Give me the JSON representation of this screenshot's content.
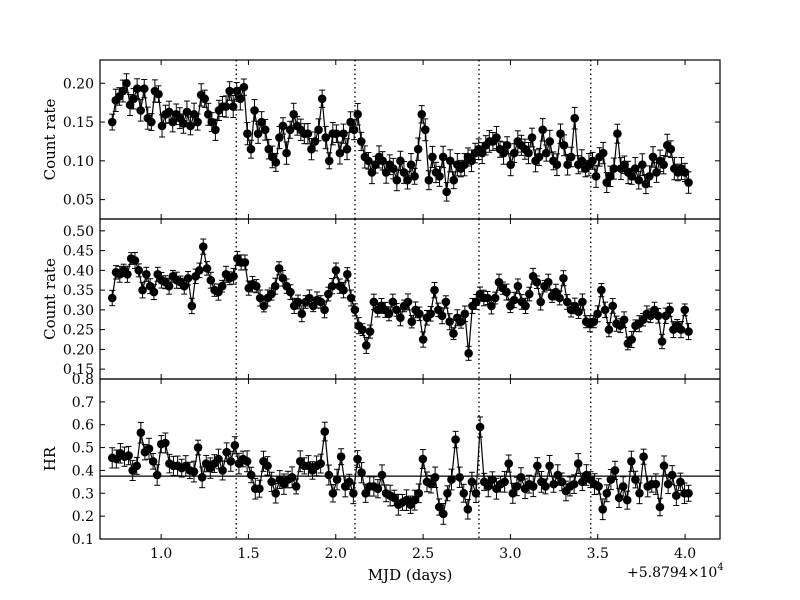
{
  "chart_data": [
    {
      "type": "scatter",
      "ylabel": "Count rate",
      "ylim": [
        0.025,
        0.23
      ],
      "yticks": [
        0.05,
        0.1,
        0.15,
        0.2
      ],
      "ytick_labels": [
        "0.05",
        "0.10",
        "0.15",
        "0.20"
      ],
      "series": [
        {
          "y": [
            0.15,
            0.178,
            0.183,
            0.19,
            0.2,
            0.172,
            0.18,
            0.193,
            0.165,
            0.193,
            0.155,
            0.15,
            0.19,
            0.186,
            0.145,
            0.16,
            0.163,
            0.15,
            0.16,
            0.155,
            0.148,
            0.163,
            0.145,
            0.16,
            0.15,
            0.185,
            0.18,
            0.16,
            0.15,
            0.14,
            0.165,
            0.17,
            0.17,
            0.19,
            0.17,
            0.19,
            0.18,
            0.195,
            0.135,
            0.115,
            0.165,
            0.135,
            0.15,
            0.14,
            0.115,
            0.105,
            0.098,
            0.13,
            0.145,
            0.11,
            0.14,
            0.16,
            0.145,
            0.14,
            0.135,
            0.135,
            0.115,
            0.125,
            0.14,
            0.18,
            0.13,
            0.1,
            0.135,
            0.135,
            0.11,
            0.135,
            0.115,
            0.15,
            0.14,
            0.16,
            0.125,
            0.105,
            0.1,
            0.085,
            0.095,
            0.105,
            0.1,
            0.085,
            0.095,
            0.09,
            0.075,
            0.1,
            0.085,
            0.075,
            0.095,
            0.08,
            0.115,
            0.16,
            0.14,
            0.075,
            0.105,
            0.085,
            0.08,
            0.105,
            0.06,
            0.1,
            0.075,
            0.095,
            0.09,
            0.095,
            0.105,
            0.1,
            0.11,
            0.115,
            0.11,
            0.12,
            0.125,
            0.125,
            0.13,
            0.115,
            0.11,
            0.12,
            0.095,
            0.11,
            0.125,
            0.12,
            0.115,
            0.11,
            0.13,
            0.1,
            0.105,
            0.14,
            0.11,
            0.125,
            0.1,
            0.095,
            0.135,
            0.12,
            0.095,
            0.105,
            0.155,
            0.095,
            0.1,
            0.09,
            0.095,
            0.1,
            0.08,
            0.105,
            0.11,
            0.072,
            0.08,
            0.09,
            0.135,
            0.09,
            0.095,
            0.085,
            0.08,
            0.09,
            0.075,
            0.095,
            0.07,
            0.08,
            0.105,
            0.085,
            0.1,
            0.095,
            0.12,
            0.115,
            0.09,
            0.085,
            0.09,
            0.085,
            0.072
          ]
        }
      ]
    },
    {
      "type": "scatter",
      "ylabel": "Count rate",
      "ylim": [
        0.125,
        0.53
      ],
      "yticks": [
        0.15,
        0.2,
        0.25,
        0.3,
        0.35,
        0.4,
        0.45,
        0.5
      ],
      "ytick_labels": [
        "0.15",
        "0.20",
        "0.25",
        "0.30",
        "0.35",
        "0.40",
        "0.45",
        "0.50"
      ],
      "series": [
        {
          "y": [
            0.33,
            0.395,
            0.39,
            0.4,
            0.39,
            0.43,
            0.425,
            0.4,
            0.35,
            0.39,
            0.36,
            0.345,
            0.39,
            0.375,
            0.37,
            0.36,
            0.385,
            0.375,
            0.37,
            0.36,
            0.38,
            0.31,
            0.385,
            0.4,
            0.46,
            0.405,
            0.375,
            0.35,
            0.345,
            0.36,
            0.39,
            0.38,
            0.385,
            0.43,
            0.42,
            0.42,
            0.355,
            0.365,
            0.36,
            0.33,
            0.31,
            0.33,
            0.34,
            0.36,
            0.405,
            0.38,
            0.36,
            0.345,
            0.31,
            0.32,
            0.29,
            0.32,
            0.33,
            0.31,
            0.325,
            0.32,
            0.3,
            0.34,
            0.36,
            0.4,
            0.36,
            0.35,
            0.39,
            0.33,
            0.3,
            0.26,
            0.25,
            0.21,
            0.245,
            0.32,
            0.3,
            0.31,
            0.3,
            0.29,
            0.32,
            0.3,
            0.28,
            0.31,
            0.32,
            0.27,
            0.3,
            0.29,
            0.225,
            0.28,
            0.29,
            0.35,
            0.3,
            0.285,
            0.32,
            0.27,
            0.24,
            0.28,
            0.27,
            0.29,
            0.19,
            0.31,
            0.32,
            0.34,
            0.33,
            0.33,
            0.31,
            0.33,
            0.37,
            0.355,
            0.345,
            0.31,
            0.325,
            0.36,
            0.32,
            0.31,
            0.34,
            0.385,
            0.37,
            0.32,
            0.36,
            0.37,
            0.335,
            0.345,
            0.33,
            0.38,
            0.32,
            0.3,
            0.31,
            0.295,
            0.32,
            0.27,
            0.265,
            0.27,
            0.29,
            0.35,
            0.3,
            0.25,
            0.31,
            0.265,
            0.26,
            0.275,
            0.215,
            0.225,
            0.26,
            0.265,
            0.275,
            0.29,
            0.285,
            0.3,
            0.285,
            0.22,
            0.285,
            0.3,
            0.25,
            0.26,
            0.25,
            0.3,
            0.245
          ]
        }
      ]
    },
    {
      "type": "scatter",
      "ylabel": "HR",
      "xlabel": "MJD (days)",
      "x_offset_label": "+5.8794×10",
      "x_offset_exponent": "4",
      "xlim": [
        0.65,
        4.2
      ],
      "xticks": [
        1.0,
        1.5,
        2.0,
        2.5,
        3.0,
        3.5,
        4.0
      ],
      "xtick_labels": [
        "1.0",
        "1.5",
        "2.0",
        "2.5",
        "3.0",
        "3.5",
        "4.0"
      ],
      "ylim": [
        0.1,
        0.8
      ],
      "yticks": [
        0.1,
        0.2,
        0.3,
        0.4,
        0.5,
        0.6,
        0.7,
        0.8
      ],
      "ytick_labels": [
        "0.1",
        "0.2",
        "0.3",
        "0.4",
        "0.5",
        "0.6",
        "0.7",
        "0.8"
      ],
      "reference_line_y": 0.375,
      "series": [
        {
          "y": [
            0.455,
            0.45,
            0.475,
            0.46,
            0.465,
            0.4,
            0.42,
            0.565,
            0.48,
            0.495,
            0.44,
            0.38,
            0.515,
            0.52,
            0.43,
            0.42,
            0.42,
            0.41,
            0.42,
            0.4,
            0.395,
            0.5,
            0.37,
            0.43,
            0.41,
            0.43,
            0.45,
            0.4,
            0.48,
            0.44,
            0.51,
            0.43,
            0.45,
            0.44,
            0.38,
            0.32,
            0.32,
            0.44,
            0.42,
            0.35,
            0.3,
            0.36,
            0.34,
            0.36,
            0.37,
            0.33,
            0.44,
            0.42,
            0.42,
            0.4,
            0.42,
            0.43,
            0.57,
            0.38,
            0.3,
            0.36,
            0.46,
            0.33,
            0.35,
            0.3,
            0.45,
            0.39,
            0.3,
            0.33,
            0.33,
            0.32,
            0.38,
            0.3,
            0.29,
            0.28,
            0.25,
            0.26,
            0.27,
            0.25,
            0.27,
            0.3,
            0.45,
            0.35,
            0.34,
            0.37,
            0.24,
            0.21,
            0.3,
            0.36,
            0.535,
            0.37,
            0.3,
            0.23,
            0.35,
            0.3,
            0.59,
            0.35,
            0.33,
            0.36,
            0.32,
            0.34,
            0.35,
            0.43,
            0.3,
            0.33,
            0.37,
            0.32,
            0.34,
            0.33,
            0.42,
            0.35,
            0.33,
            0.42,
            0.34,
            0.38,
            0.35,
            0.31,
            0.33,
            0.34,
            0.43,
            0.35,
            0.38,
            0.36,
            0.34,
            0.33,
            0.23,
            0.3,
            0.36,
            0.4,
            0.28,
            0.33,
            0.27,
            0.44,
            0.36,
            0.3,
            0.46,
            0.33,
            0.34,
            0.34,
            0.24,
            0.42,
            0.34,
            0.38,
            0.29,
            0.35,
            0.3,
            0.3
          ]
        }
      ]
    }
  ],
  "vertical_markers_x": [
    1.43,
    2.11,
    2.82,
    3.46
  ]
}
